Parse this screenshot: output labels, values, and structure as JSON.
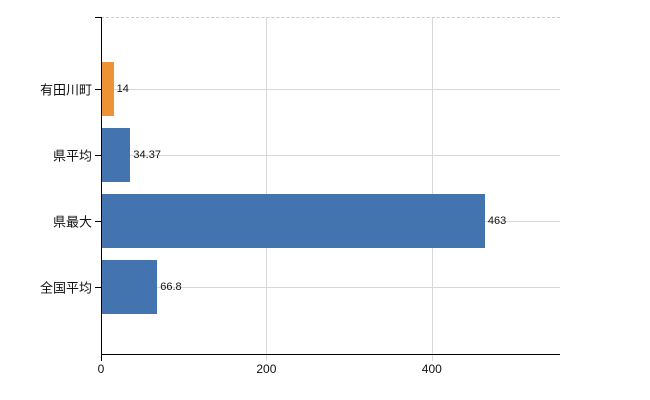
{
  "chart_data": {
    "type": "bar",
    "orientation": "horizontal",
    "title": "",
    "categories": [
      "有田川町",
      "県平均",
      "県最大",
      "全国平均"
    ],
    "series": [
      {
        "name": "values",
        "values": [
          14,
          34.37,
          463,
          66.8
        ]
      }
    ],
    "value_labels": [
      "14",
      "34.37",
      "463",
      "66.8"
    ],
    "bar_colors": [
      "#EE9335",
      "#4474B0",
      "#4474B0",
      "#4474B0"
    ],
    "x_axis": {
      "range": [
        0,
        555
      ],
      "ticks": [
        0,
        200,
        400
      ],
      "tick_labels": [
        "0",
        "200",
        "400"
      ],
      "grid": true
    },
    "y_axis": {
      "grid": true
    },
    "legend": "none",
    "colors": {
      "bar_blue": "#4474B0",
      "bar_orange": "#EE9335",
      "grid": "#d8d8d8",
      "axis": "#000000",
      "text": "#111111",
      "background": "#ffffff"
    }
  }
}
